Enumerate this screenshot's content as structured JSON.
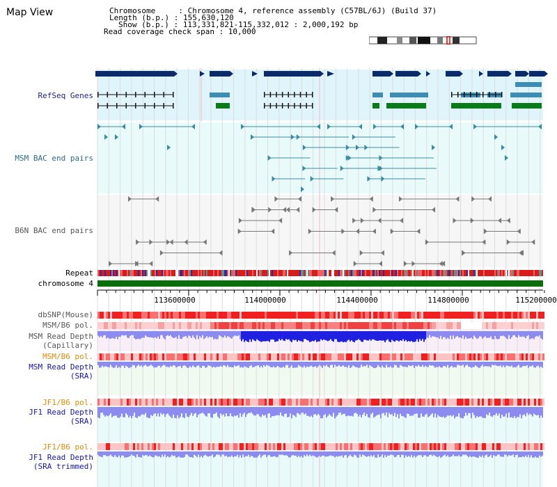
{
  "title": "Map View",
  "info": {
    "line1": "Chromosome     : Chromosome 4, reference assembly (C57BL/6J) (Build 37)",
    "line2": "Length (b.p.) : 155,630,120",
    "line3": "Show (b.p.) : 113,331,821-115,332,012 : 2,000,192 bp",
    "line4": "Read coverage check span : 10,000"
  },
  "tracks": {
    "refseq": "RefSeq Genes",
    "msm_bac": "MSM BAC end pairs",
    "b6n_bac": "B6N BAC end pairs",
    "repeat": "Repeat",
    "chromosome": "chromosome 4",
    "dbsnp": "dbSNP(Mouse)",
    "msm_pol1": "MSM/B6 pol.",
    "msm_depth_cap_1": "MSM Read Depth",
    "msm_depth_cap_2": "(Capillary)",
    "msm_pol2": "MSM/B6 pol.",
    "msm_depth_sra_1": "MSM Read Depth",
    "msm_depth_sra_2": "(SRA)",
    "jf1_pol1": "JF1/B6 pol.",
    "jf1_depth_1": "JF1 Read Depth",
    "jf1_depth_2": "(SRA)",
    "jf1_pol2": "JF1/B6 pol.",
    "jf1_trim_1": "JF1 Read Depth",
    "jf1_trim_2": "(SRA trimmed)"
  },
  "axis": {
    "ticks": [
      "113600000",
      "114000000",
      "114400000",
      "114800000",
      "115200000"
    ]
  },
  "colors": {
    "refseq_bg": "#e0f4fb",
    "msm_bac_bg": "#e8fafa",
    "b6n_bac_bg": "#f6f6f6",
    "gene_navy": "#0b2a6a",
    "gene_teal": "#3c8cb4",
    "gene_green": "#0a7a1a",
    "chromosome_green": "#0a6e0a",
    "snp_red": "#f02020",
    "depth_blue": "#2020e0",
    "depth_light": "#8c8cf0"
  }
}
